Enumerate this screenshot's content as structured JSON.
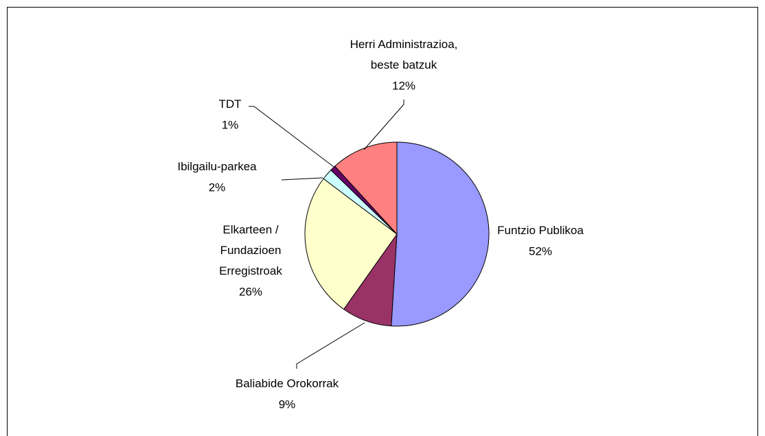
{
  "chart_data": {
    "type": "pie",
    "categories": [
      "Funtzio Publikoa",
      "Baliabide Orokorrak",
      "Elkarteen /\nFundazioen\nErregistroak",
      "Ibilgailu-parkea",
      "TDT",
      "Herri Administrazioa,\nbeste batzuk"
    ],
    "values": [
      52,
      9,
      26,
      2,
      1,
      12
    ],
    "value_labels": [
      "52%",
      "9%",
      "26%",
      "2%",
      "1%",
      "12%"
    ],
    "colors": [
      "#9999ff",
      "#993366",
      "#ffffcc",
      "#ccffff",
      "#660066",
      "#ff8080"
    ]
  }
}
